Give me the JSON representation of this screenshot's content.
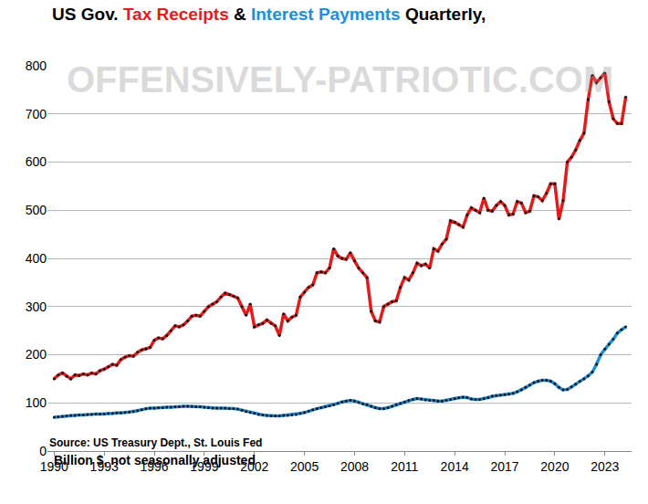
{
  "chart_data": {
    "type": "line",
    "title": "US Gov. Tax Receipts & Interest Payments Quarterly,",
    "subtitle": "Billion $, not seasonally adjusted",
    "source": "Source: US Treasury Dept., St. Louis Fed",
    "watermark": "OFFENSIVELY-PATRIOTIC.COM",
    "x": [
      1990,
      1990.25,
      1990.5,
      1990.75,
      1991,
      1991.25,
      1991.5,
      1991.75,
      1992,
      1992.25,
      1992.5,
      1992.75,
      1993,
      1993.25,
      1993.5,
      1993.75,
      1994,
      1994.25,
      1994.5,
      1994.75,
      1995,
      1995.25,
      1995.5,
      1995.75,
      1996,
      1996.25,
      1996.5,
      1996.75,
      1997,
      1997.25,
      1997.5,
      1997.75,
      1998,
      1998.25,
      1998.5,
      1998.75,
      1999,
      1999.25,
      1999.5,
      1999.75,
      2000,
      2000.25,
      2000.5,
      2000.75,
      2001,
      2001.25,
      2001.5,
      2001.75,
      2002,
      2002.25,
      2002.5,
      2002.75,
      2003,
      2003.25,
      2003.5,
      2003.75,
      2004,
      2004.25,
      2004.5,
      2004.75,
      2005,
      2005.25,
      2005.5,
      2005.75,
      2006,
      2006.25,
      2006.5,
      2006.75,
      2007,
      2007.25,
      2007.5,
      2007.75,
      2008,
      2008.25,
      2008.5,
      2008.75,
      2009,
      2009.25,
      2009.5,
      2009.75,
      2010,
      2010.25,
      2010.5,
      2010.75,
      2011,
      2011.25,
      2011.5,
      2011.75,
      2012,
      2012.25,
      2012.5,
      2012.75,
      2013,
      2013.25,
      2013.5,
      2013.75,
      2014,
      2014.25,
      2014.5,
      2014.75,
      2015,
      2015.25,
      2015.5,
      2015.75,
      2016,
      2016.25,
      2016.5,
      2016.75,
      2017,
      2017.25,
      2017.5,
      2017.75,
      2018,
      2018.25,
      2018.5,
      2018.75,
      2019,
      2019.25,
      2019.5,
      2019.75,
      2020,
      2020.25,
      2020.5,
      2020.75,
      2021,
      2021.25,
      2021.5,
      2021.75,
      2022,
      2022.25,
      2022.5,
      2022.75,
      2023,
      2023.25,
      2023.5,
      2023.75,
      2024,
      2024.25
    ],
    "series": [
      {
        "name": "Tax Receipts",
        "color": "#e31b1b",
        "marker": "circle",
        "values": [
          150,
          158,
          162,
          155,
          150,
          158,
          157,
          160,
          158,
          162,
          160,
          167,
          170,
          175,
          180,
          178,
          190,
          195,
          198,
          197,
          205,
          210,
          212,
          215,
          230,
          235,
          233,
          240,
          250,
          260,
          258,
          262,
          270,
          280,
          282,
          280,
          290,
          300,
          305,
          310,
          320,
          328,
          325,
          322,
          318,
          300,
          282,
          305,
          258,
          262,
          265,
          272,
          265,
          260,
          240,
          285,
          270,
          278,
          282,
          320,
          330,
          340,
          345,
          370,
          372,
          370,
          380,
          420,
          405,
          400,
          398,
          412,
          395,
          380,
          370,
          360,
          290,
          270,
          268,
          300,
          305,
          310,
          312,
          340,
          360,
          355,
          370,
          390,
          385,
          388,
          380,
          420,
          415,
          430,
          440,
          478,
          475,
          470,
          465,
          490,
          505,
          500,
          495,
          525,
          500,
          498,
          510,
          518,
          510,
          490,
          492,
          518,
          515,
          495,
          498,
          530,
          528,
          520,
          535,
          555,
          555,
          482,
          520,
          600,
          610,
          625,
          645,
          660,
          730,
          780,
          765,
          775,
          785,
          725,
          690,
          680,
          680,
          735
        ]
      },
      {
        "name": "Interest Payments",
        "color": "#1c8fdc",
        "marker": "circle",
        "values": [
          70,
          71,
          72,
          73,
          74,
          74,
          75,
          75,
          76,
          76,
          77,
          77,
          77,
          78,
          78,
          79,
          79,
          80,
          81,
          82,
          84,
          86,
          88,
          89,
          89,
          90,
          90,
          91,
          91,
          92,
          92,
          93,
          93,
          93,
          92,
          92,
          91,
          90,
          89,
          89,
          89,
          89,
          88,
          88,
          87,
          85,
          82,
          80,
          78,
          76,
          75,
          74,
          73,
          73,
          73,
          74,
          74,
          75,
          76,
          78,
          80,
          83,
          86,
          88,
          90,
          92,
          94,
          96,
          99,
          102,
          104,
          105,
          104,
          101,
          98,
          96,
          93,
          90,
          88,
          88,
          90,
          93,
          96,
          99,
          102,
          105,
          107,
          109,
          108,
          106,
          105,
          105,
          104,
          104,
          105,
          107,
          109,
          111,
          112,
          111,
          108,
          107,
          107,
          109,
          111,
          114,
          115,
          116,
          117,
          118,
          120,
          123,
          127,
          132,
          137,
          142,
          145,
          147,
          147,
          145,
          140,
          132,
          127,
          128,
          133,
          139,
          145,
          150,
          156,
          164,
          180,
          200,
          212,
          222,
          232,
          245,
          252,
          258
        ]
      }
    ],
    "xlim": [
      1989.6,
      2024.6
    ],
    "xticks": [
      1990,
      1993,
      1996,
      1999,
      2002,
      2005,
      2008,
      2011,
      2014,
      2017,
      2020,
      2023
    ],
    "ylim": [
      0,
      800
    ],
    "yticks": [
      0,
      100,
      200,
      300,
      400,
      500,
      600,
      700,
      800
    ],
    "grid": true
  }
}
